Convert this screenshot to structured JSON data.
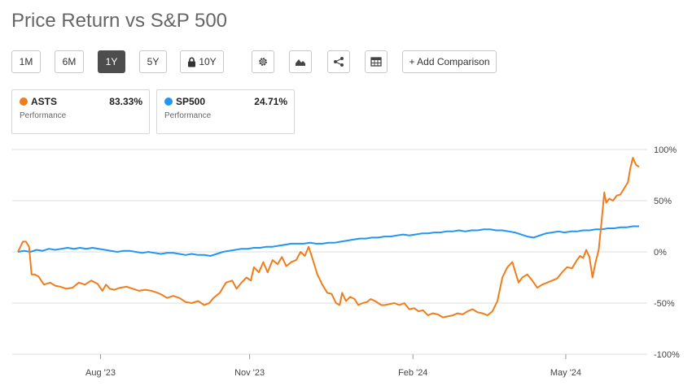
{
  "title": "Price Return vs S&P 500",
  "toolbar": {
    "ranges": [
      "1M",
      "6M",
      "1Y",
      "5Y",
      "10Y"
    ],
    "active_range": "1Y",
    "add_comparison": "+ Add Comparison",
    "icons": [
      "gear-icon",
      "mountain-chart-icon",
      "share-icon",
      "table-icon",
      "lock-icon"
    ]
  },
  "legend": [
    {
      "symbol": "ASTS",
      "value": "83.33%",
      "subtitle": "Performance",
      "color": "#f07d1c"
    },
    {
      "symbol": "SP500",
      "value": "24.71%",
      "subtitle": "Performance",
      "color": "#2196f3"
    }
  ],
  "chart_data": {
    "type": "line",
    "title": "Price Return vs S&P 500",
    "x_tick_labels": [
      "Aug '23",
      "Nov '23",
      "Feb '24",
      "May '24"
    ],
    "x_tick_positions": [
      0.133,
      0.373,
      0.636,
      0.882
    ],
    "y_tick_labels": [
      "100%",
      "50%",
      "0%",
      "-50%",
      "-100%"
    ],
    "ylim": [
      -100,
      100
    ],
    "grid": true,
    "series": [
      {
        "name": "ASTS",
        "color": "#f07d1c",
        "x": [
          0.0,
          0.008,
          0.013,
          0.018,
          0.022,
          0.027,
          0.033,
          0.042,
          0.052,
          0.06,
          0.068,
          0.078,
          0.088,
          0.098,
          0.108,
          0.118,
          0.128,
          0.136,
          0.142,
          0.148,
          0.155,
          0.165,
          0.175,
          0.185,
          0.195,
          0.205,
          0.215,
          0.225,
          0.232,
          0.24,
          0.25,
          0.26,
          0.27,
          0.28,
          0.29,
          0.3,
          0.308,
          0.315,
          0.325,
          0.335,
          0.345,
          0.352,
          0.36,
          0.368,
          0.375,
          0.38,
          0.388,
          0.395,
          0.402,
          0.41,
          0.418,
          0.425,
          0.432,
          0.44,
          0.448,
          0.455,
          0.462,
          0.468,
          0.475,
          0.482,
          0.49,
          0.498,
          0.505,
          0.512,
          0.518,
          0.522,
          0.528,
          0.535,
          0.542,
          0.548,
          0.555,
          0.562,
          0.568,
          0.575,
          0.58,
          0.585,
          0.59,
          0.598,
          0.606,
          0.614,
          0.622,
          0.63,
          0.638,
          0.645,
          0.652,
          0.66,
          0.668,
          0.676,
          0.684,
          0.692,
          0.7,
          0.708,
          0.716,
          0.724,
          0.732,
          0.74,
          0.748,
          0.756,
          0.764,
          0.772,
          0.78,
          0.788,
          0.796,
          0.8,
          0.806,
          0.812,
          0.82,
          0.828,
          0.836,
          0.844,
          0.852,
          0.86,
          0.868,
          0.876,
          0.884,
          0.892,
          0.9,
          0.905,
          0.91,
          0.915,
          0.92,
          0.925,
          0.93,
          0.935,
          0.94,
          0.944,
          0.947,
          0.952,
          0.958,
          0.964,
          0.97,
          0.976,
          0.982,
          0.986,
          0.99,
          0.995,
          1.0
        ],
        "values": [
          0,
          10,
          10,
          5,
          -22,
          -22,
          -24,
          -32,
          -30,
          -33,
          -34,
          -36,
          -35,
          -30,
          -32,
          -28,
          -31,
          -38,
          -32,
          -36,
          -37,
          -35,
          -34,
          -36,
          -38,
          -37,
          -38,
          -40,
          -42,
          -45,
          -43,
          -45,
          -49,
          -50,
          -48,
          -52,
          -50,
          -45,
          -40,
          -30,
          -28,
          -36,
          -30,
          -25,
          -28,
          -15,
          -20,
          -10,
          -20,
          -8,
          -12,
          -5,
          -14,
          -10,
          -8,
          0,
          -4,
          5,
          -8,
          -22,
          -32,
          -40,
          -41,
          -50,
          -52,
          -40,
          -48,
          -44,
          -46,
          -52,
          -50,
          -49,
          -46,
          -48,
          -50,
          -52,
          -52,
          -51,
          -50,
          -52,
          -50,
          -56,
          -55,
          -58,
          -57,
          -62,
          -60,
          -61,
          -64,
          -63,
          -62,
          -60,
          -61,
          -58,
          -56,
          -59,
          -60,
          -62,
          -58,
          -48,
          -25,
          -15,
          -10,
          -18,
          -30,
          -25,
          -22,
          -28,
          -35,
          -32,
          -30,
          -28,
          -26,
          -20,
          -15,
          -16,
          -8,
          -4,
          -6,
          2,
          -5,
          -25,
          -10,
          2,
          32,
          58,
          48,
          52,
          50,
          55,
          56,
          62,
          68,
          82,
          92,
          85,
          83
        ]
      },
      {
        "name": "SP500",
        "color": "#2196f3",
        "x": [
          0.0,
          0.01,
          0.02,
          0.03,
          0.04,
          0.05,
          0.06,
          0.07,
          0.08,
          0.09,
          0.1,
          0.11,
          0.12,
          0.13,
          0.14,
          0.15,
          0.16,
          0.17,
          0.18,
          0.19,
          0.2,
          0.21,
          0.22,
          0.23,
          0.24,
          0.25,
          0.26,
          0.27,
          0.28,
          0.29,
          0.3,
          0.31,
          0.32,
          0.33,
          0.34,
          0.35,
          0.36,
          0.37,
          0.38,
          0.39,
          0.4,
          0.41,
          0.42,
          0.43,
          0.44,
          0.45,
          0.46,
          0.47,
          0.48,
          0.49,
          0.5,
          0.51,
          0.52,
          0.53,
          0.54,
          0.55,
          0.56,
          0.57,
          0.58,
          0.59,
          0.6,
          0.61,
          0.62,
          0.63,
          0.64,
          0.65,
          0.66,
          0.67,
          0.68,
          0.69,
          0.7,
          0.71,
          0.72,
          0.73,
          0.74,
          0.75,
          0.76,
          0.77,
          0.78,
          0.79,
          0.8,
          0.81,
          0.82,
          0.83,
          0.84,
          0.85,
          0.86,
          0.87,
          0.88,
          0.89,
          0.9,
          0.91,
          0.92,
          0.93,
          0.94,
          0.95,
          0.96,
          0.97,
          0.98,
          0.99,
          1.0
        ],
        "values": [
          0,
          1,
          0,
          2,
          1,
          3,
          2,
          3,
          4,
          3,
          4,
          3,
          4,
          3,
          2,
          1,
          0,
          1,
          1,
          0,
          -1,
          0,
          -1,
          -2,
          -1,
          -1,
          -2,
          -3,
          -2,
          -3,
          -3,
          -4,
          -2,
          0,
          1,
          2,
          3,
          3,
          4,
          4,
          5,
          5,
          6,
          7,
          8,
          8,
          8,
          9,
          8,
          8,
          9,
          9,
          10,
          11,
          12,
          13,
          13,
          14,
          14,
          15,
          15,
          16,
          17,
          16,
          17,
          18,
          18,
          19,
          19,
          20,
          20,
          21,
          20,
          21,
          21,
          22,
          22,
          21,
          21,
          20,
          19,
          17,
          15,
          14,
          16,
          18,
          19,
          20,
          19,
          20,
          20,
          21,
          21,
          22,
          22,
          23,
          23,
          24,
          24,
          25,
          25
        ]
      }
    ]
  }
}
